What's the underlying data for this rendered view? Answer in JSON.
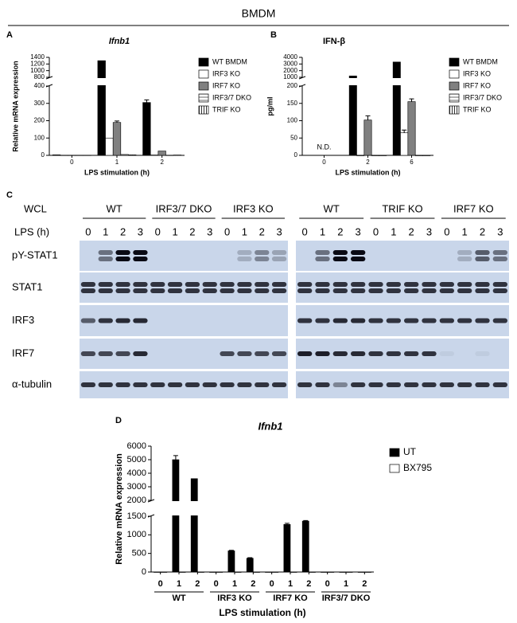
{
  "header": "BMDM",
  "chart_data": [
    {
      "type": "bar",
      "panel": "A",
      "title": "Ifnb1",
      "title_style": "italic",
      "ylabel": "Relative mRNA expression",
      "xlabel": "LPS stimulation (h)",
      "categories": [
        "0",
        "1",
        "2"
      ],
      "series": [
        {
          "name": "WT BMDM",
          "color": "#000000",
          "values": [
            3,
            1300,
            305
          ],
          "errors": [
            null,
            null,
            15
          ]
        },
        {
          "name": "IRF3 KO",
          "color": "#ffffff",
          "values": [
            1,
            100,
            2
          ]
        },
        {
          "name": "IRF7 KO",
          "color": "#808080",
          "values": [
            1,
            190,
            25
          ],
          "errors": [
            null,
            8,
            null
          ]
        },
        {
          "name": "IRF3/7 DKO",
          "color": "#ffffff",
          "pattern": "horizontal-lines",
          "values": [
            1,
            5,
            1
          ]
        },
        {
          "name": "TRIF KO",
          "color": "#ffffff",
          "pattern": "vertical-lines",
          "values": [
            1,
            3,
            2
          ]
        }
      ],
      "ylim_segments": [
        [
          0,
          400
        ],
        [
          800,
          1400
        ]
      ],
      "yticks": [
        0,
        100,
        200,
        300,
        400,
        800,
        1000,
        1200,
        1400
      ],
      "legend": "right"
    },
    {
      "type": "bar",
      "panel": "B",
      "title": "IFN-β",
      "title_style": "normal",
      "ylabel": "pg/ml",
      "xlabel": "LPS stimulation (h)",
      "categories": [
        "0",
        "2",
        "6"
      ],
      "series": [
        {
          "name": "WT BMDM",
          "color": "#000000",
          "values": [
            null,
            1200,
            3300
          ]
        },
        {
          "name": "IRF3 KO",
          "color": "#ffffff",
          "values": [
            null,
            0,
            65
          ],
          "errors": [
            null,
            null,
            8
          ]
        },
        {
          "name": "IRF7 KO",
          "color": "#808080",
          "values": [
            null,
            102,
            155
          ],
          "errors": [
            null,
            12,
            8
          ]
        },
        {
          "name": "IRF3/7 DKO",
          "color": "#ffffff",
          "pattern": "horizontal-lines",
          "values": [
            null,
            0,
            0
          ]
        },
        {
          "name": "TRIF KO",
          "color": "#ffffff",
          "pattern": "vertical-lines",
          "values": [
            null,
            0,
            0
          ]
        }
      ],
      "annotations": [
        {
          "text": "N.D.",
          "x": "0"
        }
      ],
      "ylim_segments": [
        [
          0,
          200
        ],
        [
          1000,
          4000
        ]
      ],
      "yticks": [
        0,
        50,
        100,
        150,
        200,
        1000,
        2000,
        3000,
        4000
      ],
      "legend": "right"
    },
    {
      "type": "bar",
      "panel": "D",
      "title": "Ifnb1",
      "title_style": "italic",
      "ylabel": "Relative mRNA expression",
      "xlabel": "LPS stimulation (h)",
      "categories": [
        "0",
        "1",
        "2",
        "0",
        "1",
        "2",
        "0",
        "1",
        "2",
        "0",
        "1",
        "2"
      ],
      "groups": [
        "WT",
        "IRF3 KO",
        "IRF7 KO",
        "IRF3/7 DKO"
      ],
      "series": [
        {
          "name": "UT",
          "color": "#000000",
          "values": [
            0,
            5000,
            3600,
            0,
            570,
            370,
            0,
            1280,
            1370,
            0,
            0,
            0
          ],
          "errors": [
            null,
            300,
            null,
            null,
            15,
            15,
            null,
            30,
            15,
            null,
            null,
            null
          ]
        },
        {
          "name": "BX795",
          "color": "#ffffff",
          "values": [
            0,
            0,
            0,
            0,
            0,
            0,
            0,
            0,
            0,
            0,
            0,
            0
          ]
        }
      ],
      "ylim_segments": [
        [
          0,
          1500
        ],
        [
          2000,
          6000
        ]
      ],
      "yticks": [
        0,
        500,
        1000,
        1500,
        2000,
        3000,
        4000,
        5000,
        6000
      ],
      "legend": "upper right"
    }
  ],
  "blot": {
    "panel": "C",
    "wcl": "WCL",
    "lps": "LPS (h)",
    "groups": [
      "WT",
      "IRF3/7 DKO",
      "IRF3 KO",
      "WT",
      "TRIF KO",
      "IRF7 KO"
    ],
    "times": [
      "0",
      "1",
      "2",
      "3"
    ],
    "rows": [
      "pY-STAT1",
      "STAT1",
      "IRF3",
      "IRF7",
      "α-tubulin"
    ]
  }
}
